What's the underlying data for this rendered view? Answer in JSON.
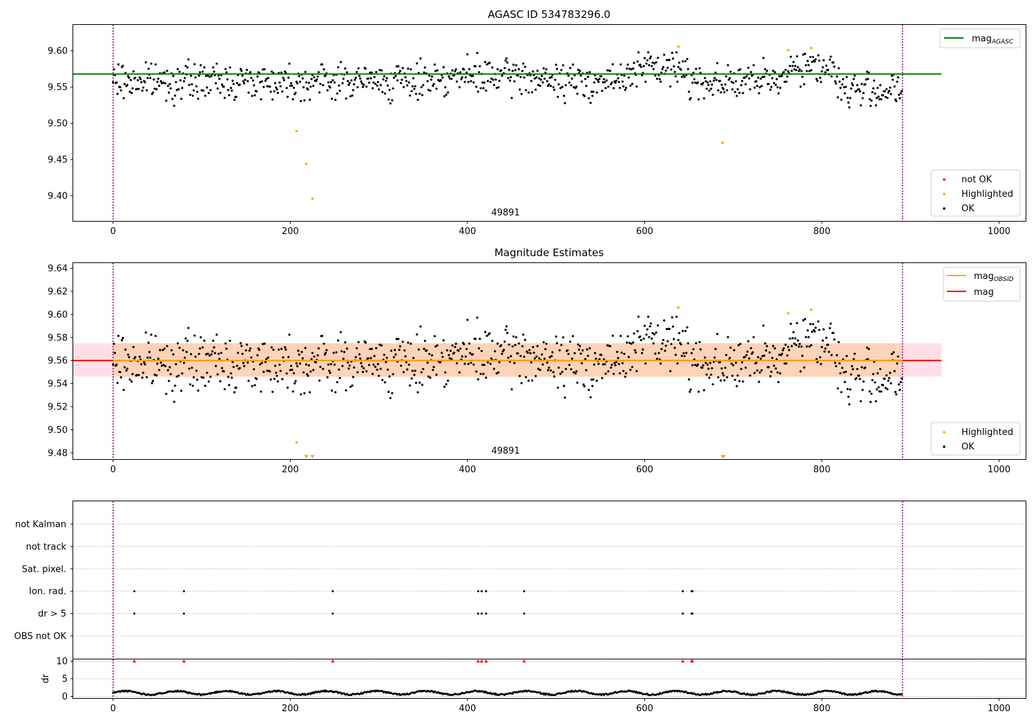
{
  "figure": {
    "background": "#ffffff"
  },
  "chart_data": [
    {
      "type": "scatter",
      "title": "AGASC ID 534783296.0",
      "xlim": [
        -45,
        1030
      ],
      "ylim": [
        9.365,
        9.636
      ],
      "xticks": [
        0,
        200,
        400,
        600,
        800,
        1000
      ],
      "yticks": [
        9.4,
        9.45,
        9.5,
        9.55,
        9.6
      ],
      "ytick_labels": [
        "9.40",
        "9.45",
        "9.50",
        "9.55",
        "9.60"
      ],
      "grid": false,
      "vlines": [
        {
          "x": 0,
          "color": "#800080",
          "style": "dotted"
        },
        {
          "x": 891,
          "color": "#800080",
          "style": "dotted"
        }
      ],
      "hlines": [
        {
          "y": 9.568,
          "x_range": [
            -45,
            935
          ],
          "color": "#008000",
          "name": "mag",
          "subscript": "AGASC"
        }
      ],
      "annotation": {
        "text": "49891",
        "x": 445,
        "y": 9.372
      },
      "legend_top": {
        "position": "top-right",
        "entries": [
          {
            "name": "mag",
            "subscript": "AGASC",
            "color": "#008000",
            "marker": "line"
          }
        ]
      },
      "legend_bottom": {
        "position": "bottom-right",
        "entries": [
          {
            "name": "not OK",
            "color": "#ff0000",
            "marker": "dot"
          },
          {
            "name": "Highlighted",
            "color": "#ffa500",
            "marker": "dot"
          },
          {
            "name": "OK",
            "color": "#000000",
            "marker": "dot"
          }
        ]
      },
      "ok_series": {
        "name": "OK",
        "color": "#000000",
        "n": 891,
        "x_range": [
          0,
          890
        ],
        "y_center": 9.558,
        "y_spread": 0.012,
        "y_min": 9.522,
        "y_max": 9.598
      },
      "highlighted": [
        {
          "x": 207,
          "y": 9.489
        },
        {
          "x": 218,
          "y": 9.444
        },
        {
          "x": 225,
          "y": 9.396
        },
        {
          "x": 638,
          "y": 9.606
        },
        {
          "x": 688,
          "y": 9.473
        },
        {
          "x": 762,
          "y": 9.601
        },
        {
          "x": 788,
          "y": 9.604
        }
      ]
    },
    {
      "type": "scatter",
      "title": "Magnitude Estimates",
      "xlim": [
        -45,
        1030
      ],
      "ylim": [
        9.4745,
        9.6445
      ],
      "xticks": [
        0,
        200,
        400,
        600,
        800,
        1000
      ],
      "yticks": [
        9.48,
        9.5,
        9.52,
        9.54,
        9.56,
        9.58,
        9.6,
        9.62,
        9.64
      ],
      "ytick_labels": [
        "9.48",
        "9.50",
        "9.52",
        "9.54",
        "9.56",
        "9.58",
        "9.60",
        "9.62",
        "9.64"
      ],
      "grid": false,
      "vlines": [
        {
          "x": 0,
          "color": "#800080",
          "style": "dotted"
        },
        {
          "x": 891,
          "color": "#800080",
          "style": "dotted"
        }
      ],
      "bands": [
        {
          "x_range": [
            -45,
            935
          ],
          "y_range": [
            9.546,
            9.575
          ],
          "color": "#ffc0cb",
          "opacity": 0.5
        },
        {
          "x_range": [
            0,
            891
          ],
          "y_range": [
            9.546,
            9.575
          ],
          "color": "#ffa500",
          "opacity": 0.2
        }
      ],
      "hlines": [
        {
          "y": 9.56,
          "x_range": [
            -45,
            935
          ],
          "color": "#ff0000",
          "name": "mag"
        },
        {
          "y": 9.56,
          "x_range": [
            0,
            891
          ],
          "color": "#ffa500",
          "name": "mag",
          "subscript": "OBSID"
        }
      ],
      "annotation": {
        "text": "49891",
        "x": 445,
        "y": 9.479
      },
      "legend_top": {
        "position": "top-right",
        "entries": [
          {
            "name": "mag",
            "subscript": "OBSID",
            "color": "#ffa500",
            "marker": "line"
          },
          {
            "name": "mag",
            "color": "#ff0000",
            "marker": "line"
          }
        ]
      },
      "legend_bottom": {
        "position": "bottom-right",
        "entries": [
          {
            "name": "Highlighted",
            "color": "#ffa500",
            "marker": "dot"
          },
          {
            "name": "OK",
            "color": "#000000",
            "marker": "dot"
          }
        ]
      },
      "highlighted": [
        {
          "x": 207,
          "y": 9.489
        },
        {
          "x": 638,
          "y": 9.606
        },
        {
          "x": 762,
          "y": 9.601
        },
        {
          "x": 788,
          "y": 9.604
        }
      ],
      "below_range_markers": [
        {
          "x": 218
        },
        {
          "x": 225
        },
        {
          "x": 688
        },
        {
          "x": 689
        }
      ]
    },
    {
      "type": "scatter",
      "xlim": [
        -45,
        1030
      ],
      "xticks": [
        0,
        200,
        400,
        600,
        800,
        1000
      ],
      "flag_rows": [
        "not Kalman",
        "not track",
        "Sat. pixel.",
        "Ion. rad.",
        "dr > 5",
        "OBS not OK"
      ],
      "flag_hits": {
        "Ion. rad.": [
          24,
          80,
          248,
          412,
          416,
          421,
          464,
          643,
          653,
          654
        ],
        "dr > 5": [
          24,
          80,
          248,
          412,
          416,
          421,
          464,
          643,
          653,
          654
        ]
      },
      "vlines": [
        {
          "x": 0,
          "color": "#800080",
          "style": "dotted"
        },
        {
          "x": 891,
          "color": "#800080",
          "style": "dotted"
        }
      ]
    },
    {
      "type": "scatter",
      "ylabel": "dr",
      "xlim": [
        -45,
        1030
      ],
      "ylim": [
        -0.5,
        10.5
      ],
      "xticks": [
        0,
        200,
        400,
        600,
        800,
        1000
      ],
      "yticks": [
        0,
        5,
        10
      ],
      "series": [
        {
          "color": "#000000",
          "n": 891,
          "x_range": [
            0,
            890
          ],
          "y_center": 1.0,
          "y_spread": 0.4
        }
      ],
      "clipped_high": {
        "color": "#ff0000",
        "y": 10,
        "x": [
          24,
          80,
          248,
          412,
          416,
          421,
          464,
          643,
          653,
          654
        ]
      },
      "vlines": [
        {
          "x": 0,
          "color": "#800080",
          "style": "dotted"
        },
        {
          "x": 891,
          "color": "#800080",
          "style": "dotted"
        }
      ]
    }
  ]
}
